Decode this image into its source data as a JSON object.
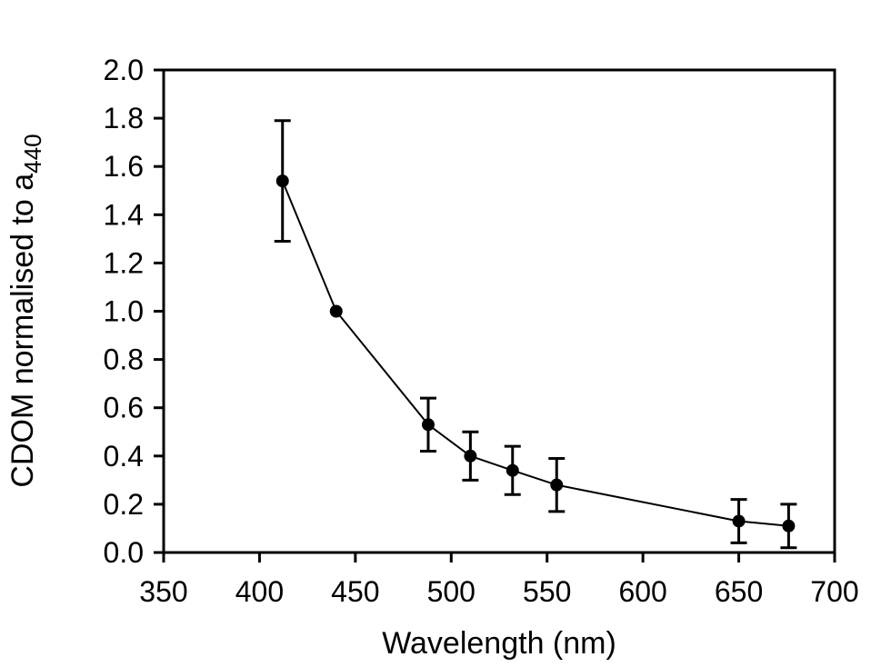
{
  "chart_data": {
    "type": "line",
    "title": "",
    "xlabel": "Wavelength (nm)",
    "ylabel": "CDOM normalised to a",
    "ylabel_subscript": "440",
    "xlim": [
      350,
      700
    ],
    "ylim": [
      0.0,
      2.0
    ],
    "x_ticks": [
      350,
      400,
      450,
      500,
      550,
      600,
      650,
      700
    ],
    "y_ticks": [
      0.0,
      0.2,
      0.4,
      0.6,
      0.8,
      1.0,
      1.2,
      1.4,
      1.6,
      1.8,
      2.0
    ],
    "y_tick_labels": [
      "0.0",
      "0.2",
      "0.4",
      "0.6",
      "0.8",
      "1.0",
      "1.2",
      "1.4",
      "1.6",
      "1.8",
      "2.0"
    ],
    "grid": false,
    "legend": "none",
    "series": [
      {
        "name": "CDOM normalised to a440",
        "marker": "filled-circle",
        "color": "#000000",
        "x": [
          412,
          440,
          488,
          510,
          532,
          555,
          650,
          676
        ],
        "y": [
          1.54,
          1.0,
          0.53,
          0.4,
          0.34,
          0.28,
          0.13,
          0.11
        ],
        "y_err": [
          0.25,
          0.0,
          0.11,
          0.1,
          0.1,
          0.11,
          0.09,
          0.09
        ]
      }
    ]
  },
  "colors": {
    "background": "#ffffff",
    "axis": "#000000",
    "marker": "#000000",
    "error_bar": "#000000"
  }
}
